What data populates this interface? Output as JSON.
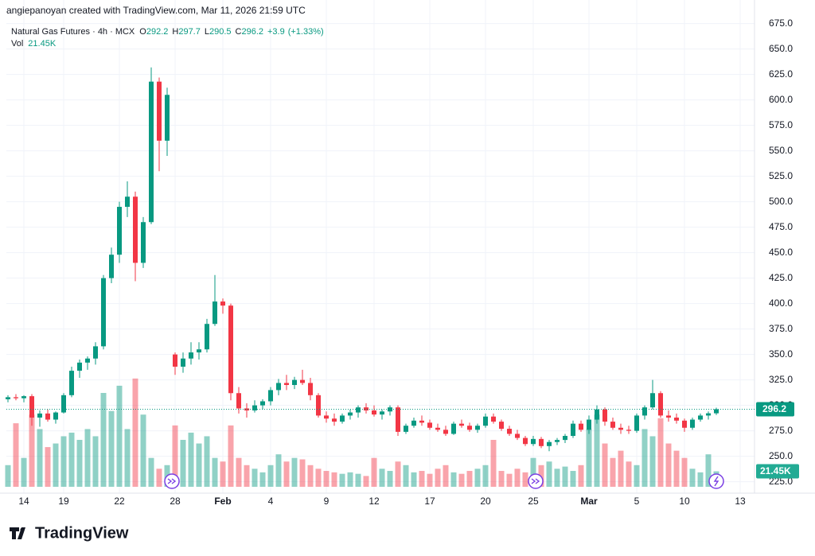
{
  "chart_data": {
    "type": "candlestick",
    "title": "angiepanoyan created with TradingView.com, Mar 11, 2026 21:59 UTC",
    "brand": "TradingView",
    "legend": {
      "symbol": "Natural Gas Futures · 4h · MCX",
      "ohlc": [
        {
          "label": "O",
          "value": 292.2
        },
        {
          "label": "H",
          "value": 297.7
        },
        {
          "label": "L",
          "value": 290.5
        },
        {
          "label": "C",
          "value": 296.2
        }
      ],
      "change": {
        "value": 3.9,
        "label": "+3.9"
      },
      "change_pct": {
        "value": 1.33,
        "label": "(+1.33%)"
      },
      "volume_name": "Vol",
      "volume": {
        "value": 21450,
        "label": "21.45K"
      }
    },
    "up_color": "#089981",
    "down_color": "#f23645",
    "grid": true,
    "categories": [
      null,
      null,
      "14",
      null,
      null,
      null,
      null,
      "19",
      null,
      null,
      null,
      null,
      null,
      null,
      "22",
      null,
      null,
      null,
      null,
      null,
      null,
      "28",
      null,
      null,
      null,
      null,
      null,
      "Feb",
      null,
      null,
      null,
      null,
      null,
      "4",
      null,
      null,
      null,
      null,
      null,
      null,
      "9",
      null,
      null,
      null,
      null,
      null,
      "12",
      null,
      null,
      null,
      null,
      null,
      null,
      "17",
      null,
      null,
      null,
      null,
      null,
      null,
      "20",
      null,
      null,
      null,
      null,
      null,
      "25",
      null,
      null,
      null,
      null,
      null,
      null,
      "Mar",
      null,
      null,
      null,
      null,
      null,
      "5",
      null,
      null,
      null,
      null,
      null,
      "10",
      null,
      null,
      null,
      null,
      null,
      null,
      "13"
    ],
    "open": [
      306,
      308,
      307,
      309,
      288,
      292,
      286,
      293,
      310,
      334,
      342,
      346,
      358,
      425,
      448,
      495,
      505,
      440,
      480,
      618,
      560,
      350,
      338,
      346,
      352,
      355,
      380,
      402,
      398,
      312,
      297,
      295,
      300,
      304,
      315,
      322,
      320,
      325,
      322,
      310,
      290,
      287,
      284,
      290,
      293,
      298,
      295,
      291,
      294,
      298,
      274,
      280,
      285,
      283,
      278,
      276,
      272,
      282,
      280,
      276,
      280,
      289,
      284,
      277,
      272,
      268,
      262,
      267,
      260,
      264,
      266,
      270,
      282,
      276,
      286,
      296,
      284,
      278,
      276,
      275,
      290,
      298,
      312,
      290,
      288,
      285,
      278,
      286,
      290,
      292.2,
      null,
      null,
      null
    ],
    "high": [
      310,
      311,
      310,
      311,
      295,
      296,
      294,
      312,
      338,
      345,
      348,
      362,
      428,
      455,
      500,
      520,
      510,
      485,
      632,
      622,
      612,
      352,
      352,
      362,
      362,
      385,
      428,
      405,
      400,
      318,
      302,
      305,
      306,
      318,
      326,
      330,
      328,
      335,
      327,
      312,
      294,
      292,
      292,
      296,
      300,
      302,
      300,
      296,
      300,
      300,
      282,
      288,
      290,
      286,
      282,
      280,
      284,
      286,
      283,
      282,
      292,
      292,
      286,
      280,
      276,
      270,
      270,
      269,
      266,
      268,
      272,
      285,
      285,
      290,
      300,
      298,
      288,
      282,
      280,
      292,
      300,
      325,
      314,
      295,
      292,
      287,
      288,
      292,
      294,
      297.7,
      null,
      null,
      null
    ],
    "low": [
      303,
      305,
      303,
      280,
      279,
      284,
      282,
      292,
      308,
      327,
      335,
      340,
      355,
      420,
      440,
      485,
      422,
      435,
      478,
      530,
      545,
      330,
      332,
      340,
      345,
      352,
      378,
      390,
      305,
      292,
      288,
      293,
      296,
      300,
      310,
      315,
      316,
      320,
      305,
      288,
      283,
      280,
      282,
      286,
      288,
      292,
      289,
      286,
      290,
      270,
      272,
      278,
      280,
      276,
      274,
      270,
      271,
      278,
      274,
      273,
      278,
      282,
      275,
      270,
      266,
      260,
      260,
      258,
      255,
      261,
      263,
      268,
      274,
      272,
      282,
      280,
      276,
      272,
      272,
      273,
      286,
      296,
      288,
      284,
      282,
      274,
      276,
      284,
      286,
      290.5,
      null,
      null,
      null
    ],
    "close": [
      308,
      307,
      309,
      288,
      292,
      286,
      293,
      310,
      334,
      342,
      346,
      358,
      425,
      448,
      495,
      505,
      440,
      480,
      618,
      560,
      605,
      338,
      346,
      352,
      355,
      380,
      402,
      398,
      312,
      297,
      295,
      300,
      304,
      315,
      322,
      320,
      325,
      322,
      310,
      290,
      287,
      284,
      290,
      293,
      298,
      295,
      291,
      294,
      298,
      274,
      280,
      285,
      283,
      278,
      276,
      272,
      282,
      280,
      276,
      280,
      289,
      284,
      277,
      272,
      268,
      262,
      267,
      260,
      264,
      266,
      270,
      282,
      276,
      286,
      296,
      284,
      278,
      276,
      275,
      290,
      298,
      312,
      290,
      288,
      285,
      278,
      286,
      290,
      292.2,
      296.2,
      null,
      null,
      null
    ],
    "volume": [
      30000,
      88000,
      40000,
      100000,
      80000,
      55000,
      60000,
      70000,
      75000,
      65000,
      80000,
      70000,
      130000,
      105000,
      140000,
      80000,
      150000,
      100000,
      40000,
      25000,
      30000,
      85000,
      65000,
      75000,
      60000,
      70000,
      40000,
      35000,
      85000,
      40000,
      30000,
      25000,
      20000,
      30000,
      45000,
      35000,
      40000,
      38000,
      30000,
      25000,
      22000,
      20000,
      18000,
      20000,
      18000,
      15000,
      40000,
      25000,
      22000,
      35000,
      30000,
      20000,
      22000,
      18000,
      25000,
      30000,
      20000,
      18000,
      22000,
      25000,
      30000,
      65000,
      22000,
      18000,
      25000,
      20000,
      40000,
      30000,
      35000,
      25000,
      28000,
      22000,
      30000,
      80000,
      100000,
      60000,
      40000,
      50000,
      35000,
      30000,
      80000,
      70000,
      95000,
      60000,
      50000,
      40000,
      25000,
      20000,
      45000,
      21450,
      null,
      null,
      null
    ],
    "ylim": [
      220,
      681
    ],
    "yticks": [
      {
        "value": 225,
        "label": "225.0"
      },
      {
        "value": 250,
        "label": "250.0"
      },
      {
        "value": 275,
        "label": "275.0"
      },
      {
        "value": 300,
        "label": "300.0"
      },
      {
        "value": 325,
        "label": "325.0"
      },
      {
        "value": 350,
        "label": "350.0"
      },
      {
        "value": 375,
        "label": "375.0"
      },
      {
        "value": 400,
        "label": "400.0"
      },
      {
        "value": 425,
        "label": "425.0"
      },
      {
        "value": 450,
        "label": "450.0"
      },
      {
        "value": 475,
        "label": "475.0"
      },
      {
        "value": 500,
        "label": "500.0"
      },
      {
        "value": 525,
        "label": "525.0"
      },
      {
        "value": 550,
        "label": "550.0"
      },
      {
        "value": 575,
        "label": "575.0"
      },
      {
        "value": 600,
        "label": "600.0"
      },
      {
        "value": 625,
        "label": "625.0"
      },
      {
        "value": 650,
        "label": "650.0"
      },
      {
        "value": 675,
        "label": "675.0"
      }
    ],
    "y2lim": [
      0,
      650000
    ]
  }
}
